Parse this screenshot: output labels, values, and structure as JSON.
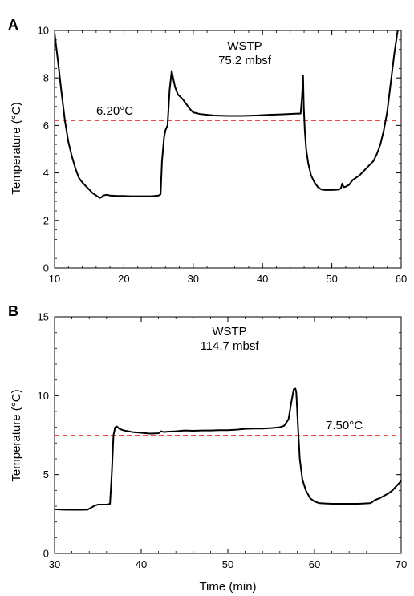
{
  "chart_data": [
    {
      "panel_label": "A",
      "type": "line",
      "annotation_title": "WSTP",
      "annotation_subtitle": "75.2 mbsf",
      "xlabel": "",
      "ylabel": "Temperature (°C)",
      "xlim": [
        10,
        60
      ],
      "ylim": [
        0,
        10
      ],
      "xticks": [
        10,
        20,
        30,
        40,
        50,
        60
      ],
      "yticks": [
        0,
        2,
        4,
        6,
        8,
        10
      ],
      "reference_line": {
        "value": 6.2,
        "label": "6.20°C",
        "color": "#e05050"
      },
      "series": [
        {
          "color": "#000000",
          "points": [
            [
              10,
              9.9
            ],
            [
              10.5,
              8.7
            ],
            [
              11,
              7.4
            ],
            [
              11.5,
              6.2
            ],
            [
              12,
              5.3
            ],
            [
              12.5,
              4.7
            ],
            [
              13,
              4.2
            ],
            [
              13.5,
              3.8
            ],
            [
              14,
              3.6
            ],
            [
              14.5,
              3.45
            ],
            [
              15,
              3.3
            ],
            [
              15.5,
              3.15
            ],
            [
              16,
              3.05
            ],
            [
              16.5,
              2.95
            ],
            [
              16.8,
              2.98
            ],
            [
              17,
              3.05
            ],
            [
              17.5,
              3.08
            ],
            [
              18,
              3.05
            ],
            [
              19,
              3.03
            ],
            [
              20,
              3.03
            ],
            [
              21,
              3.02
            ],
            [
              22,
              3.02
            ],
            [
              23,
              3.02
            ],
            [
              24,
              3.02
            ],
            [
              25,
              3.05
            ],
            [
              25.3,
              3.1
            ],
            [
              25.5,
              4.5
            ],
            [
              25.8,
              5.5
            ],
            [
              26,
              5.8
            ],
            [
              26.3,
              6.0
            ],
            [
              26.6,
              7.5
            ],
            [
              26.9,
              8.3
            ],
            [
              27.1,
              8.0
            ],
            [
              27.4,
              7.6
            ],
            [
              27.8,
              7.3
            ],
            [
              28.5,
              7.1
            ],
            [
              29,
              6.9
            ],
            [
              29.5,
              6.7
            ],
            [
              30,
              6.55
            ],
            [
              31,
              6.48
            ],
            [
              32,
              6.45
            ],
            [
              33,
              6.42
            ],
            [
              35,
              6.4
            ],
            [
              37,
              6.4
            ],
            [
              39,
              6.42
            ],
            [
              41,
              6.45
            ],
            [
              43,
              6.47
            ],
            [
              45,
              6.5
            ],
            [
              45.5,
              6.5
            ],
            [
              45.7,
              7.2
            ],
            [
              45.85,
              8.1
            ],
            [
              45.95,
              6.8
            ],
            [
              46.1,
              5.8
            ],
            [
              46.3,
              5.0
            ],
            [
              46.6,
              4.4
            ],
            [
              47,
              3.9
            ],
            [
              47.5,
              3.6
            ],
            [
              48,
              3.4
            ],
            [
              48.5,
              3.3
            ],
            [
              49,
              3.28
            ],
            [
              50,
              3.28
            ],
            [
              51,
              3.3
            ],
            [
              51.3,
              3.35
            ],
            [
              51.5,
              3.55
            ],
            [
              51.7,
              3.4
            ],
            [
              52,
              3.42
            ],
            [
              52.5,
              3.5
            ],
            [
              53,
              3.7
            ],
            [
              53.5,
              3.8
            ],
            [
              54,
              3.9
            ],
            [
              54.5,
              4.05
            ],
            [
              55,
              4.2
            ],
            [
              55.5,
              4.35
            ],
            [
              56,
              4.5
            ],
            [
              56.5,
              4.8
            ],
            [
              57,
              5.2
            ],
            [
              57.5,
              5.8
            ],
            [
              58,
              6.6
            ],
            [
              58.5,
              7.8
            ],
            [
              59,
              9.0
            ],
            [
              59.5,
              10.0
            ]
          ]
        }
      ]
    },
    {
      "panel_label": "B",
      "type": "line",
      "annotation_title": "WSTP",
      "annotation_subtitle": "114.7 mbsf",
      "xlabel": "Time (min)",
      "ylabel": "Temperature (°C)",
      "xlim": [
        30,
        70
      ],
      "ylim": [
        0,
        15
      ],
      "xticks": [
        30,
        40,
        50,
        60,
        70
      ],
      "yticks": [
        0,
        5,
        10,
        15
      ],
      "reference_line": {
        "value": 7.5,
        "label": "7.50°C",
        "color": "#e05050"
      },
      "series": [
        {
          "color": "#000000",
          "points": [
            [
              30,
              2.8
            ],
            [
              31,
              2.78
            ],
            [
              32,
              2.77
            ],
            [
              33,
              2.77
            ],
            [
              33.8,
              2.78
            ],
            [
              34.2,
              2.9
            ],
            [
              34.7,
              3.05
            ],
            [
              35,
              3.1
            ],
            [
              35.5,
              3.1
            ],
            [
              36,
              3.1
            ],
            [
              36.4,
              3.15
            ],
            [
              36.6,
              5.0
            ],
            [
              36.8,
              7.5
            ],
            [
              37,
              8.0
            ],
            [
              37.2,
              8.05
            ],
            [
              37.5,
              7.9
            ],
            [
              38,
              7.8
            ],
            [
              39,
              7.7
            ],
            [
              40,
              7.65
            ],
            [
              41,
              7.6
            ],
            [
              42,
              7.62
            ],
            [
              42.3,
              7.75
            ],
            [
              42.6,
              7.7
            ],
            [
              43,
              7.72
            ],
            [
              44,
              7.75
            ],
            [
              45,
              7.8
            ],
            [
              46,
              7.78
            ],
            [
              47,
              7.8
            ],
            [
              48,
              7.8
            ],
            [
              49,
              7.82
            ],
            [
              50,
              7.82
            ],
            [
              51,
              7.85
            ],
            [
              52,
              7.9
            ],
            [
              53,
              7.92
            ],
            [
              54,
              7.92
            ],
            [
              55,
              7.95
            ],
            [
              56,
              8.0
            ],
            [
              56.5,
              8.1
            ],
            [
              57,
              8.5
            ],
            [
              57.3,
              9.5
            ],
            [
              57.6,
              10.4
            ],
            [
              57.8,
              10.45
            ],
            [
              57.9,
              10.2
            ],
            [
              58.1,
              8.0
            ],
            [
              58.3,
              6.0
            ],
            [
              58.6,
              4.7
            ],
            [
              59,
              4.0
            ],
            [
              59.5,
              3.5
            ],
            [
              60,
              3.3
            ],
            [
              60.5,
              3.2
            ],
            [
              61,
              3.18
            ],
            [
              62,
              3.15
            ],
            [
              63,
              3.15
            ],
            [
              64,
              3.15
            ],
            [
              65,
              3.15
            ],
            [
              66,
              3.18
            ],
            [
              66.5,
              3.2
            ],
            [
              67,
              3.4
            ],
            [
              67.5,
              3.5
            ],
            [
              68,
              3.65
            ],
            [
              68.5,
              3.8
            ],
            [
              69,
              4.0
            ],
            [
              69.5,
              4.3
            ],
            [
              70,
              4.6
            ]
          ]
        }
      ]
    }
  ]
}
